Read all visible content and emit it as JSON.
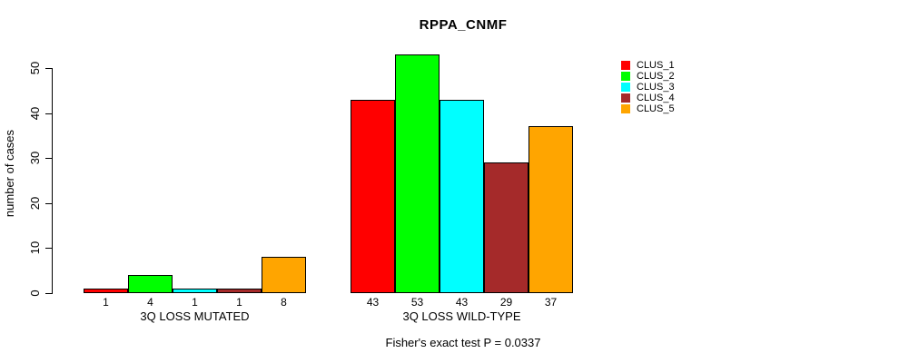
{
  "title": "RPPA_CNMF",
  "ylabel": "number of cases",
  "footer": "Fisher's exact test P = 0.0337",
  "chart_data": {
    "type": "bar",
    "title": "RPPA_CNMF",
    "xlabel": "",
    "ylabel": "number of cases",
    "ylim": [
      0,
      50
    ],
    "yticks": [
      0,
      10,
      20,
      30,
      40,
      50
    ],
    "grid": false,
    "legend_position": "right",
    "categories": [
      "3Q LOSS MUTATED",
      "3Q LOSS WILD-TYPE"
    ],
    "series": [
      {
        "name": "CLUS_1",
        "color": "#FF0000",
        "values": [
          1,
          43
        ]
      },
      {
        "name": "CLUS_2",
        "color": "#00FF00",
        "values": [
          4,
          53
        ]
      },
      {
        "name": "CLUS_3",
        "color": "#00FFFF",
        "values": [
          1,
          43
        ]
      },
      {
        "name": "CLUS_4",
        "color": "#A52A2A",
        "values": [
          1,
          29
        ]
      },
      {
        "name": "CLUS_5",
        "color": "#FFA500",
        "values": [
          8,
          37
        ]
      }
    ],
    "bar_value_labels": {
      "3Q LOSS MUTATED": [
        1,
        4,
        1,
        1,
        8
      ],
      "3Q LOSS WILD-TYPE": [
        43,
        53,
        43,
        29,
        37
      ]
    },
    "annotation": "Fisher's exact test P = 0.0337"
  }
}
